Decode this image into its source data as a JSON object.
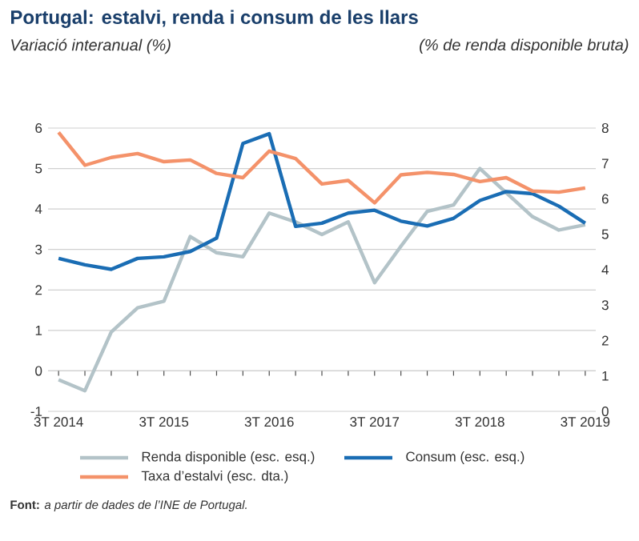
{
  "chart_data": {
    "type": "line",
    "title": "Portugal: estalvi, renda i consum de les llars",
    "ylabel": "Variació interanual (%)",
    "y2label": "(% de renda disponible bruta)",
    "categories": [
      "3T 2014",
      null,
      null,
      null,
      "3T 2015",
      null,
      null,
      null,
      "3T 2016",
      null,
      null,
      null,
      "3T 2017",
      null,
      null,
      null,
      "3T 2018",
      null,
      null,
      null,
      "3T 2019"
    ],
    "series": [
      {
        "name": "Renda disponible (esc. esq.)",
        "color": "#b3c3c8",
        "values": [
          -0.22,
          -0.49,
          0.96,
          1.56,
          1.72,
          3.32,
          2.92,
          2.82,
          3.9,
          3.68,
          3.37,
          3.68,
          2.18,
          3.08,
          3.94,
          4.1,
          5.0,
          4.4,
          3.81,
          3.48,
          3.61
        ]
      },
      {
        "name": "Consum (esc. esq.)",
        "color": "#1a6db4",
        "values": [
          2.78,
          2.62,
          2.51,
          2.78,
          2.82,
          2.95,
          3.28,
          5.62,
          5.86,
          3.57,
          3.65,
          3.9,
          3.97,
          3.7,
          3.58,
          3.77,
          4.21,
          4.43,
          4.38,
          4.07,
          3.65
        ]
      },
      {
        "name": "Taxa d’estalvi (esc. dta.)",
        "color": "#f4926a",
        "axis": "y2",
        "values": [
          7.88,
          6.95,
          7.17,
          7.28,
          7.05,
          7.1,
          6.72,
          6.6,
          7.35,
          7.14,
          6.42,
          6.52,
          5.89,
          6.68,
          6.75,
          6.69,
          6.49,
          6.6,
          6.22,
          6.19,
          6.31
        ]
      }
    ],
    "ylim": [
      -1,
      6
    ],
    "yticks": [
      -1,
      0,
      1,
      2,
      3,
      4,
      5,
      6
    ],
    "y2lim": [
      0,
      8
    ],
    "y2ticks": [
      0,
      1,
      2,
      3,
      4,
      5,
      6,
      7,
      8
    ],
    "grid": "y",
    "legend": "bottom",
    "annotations": [
      "**Font:** *a partir de dades de l’INE de Portugal.*"
    ]
  }
}
